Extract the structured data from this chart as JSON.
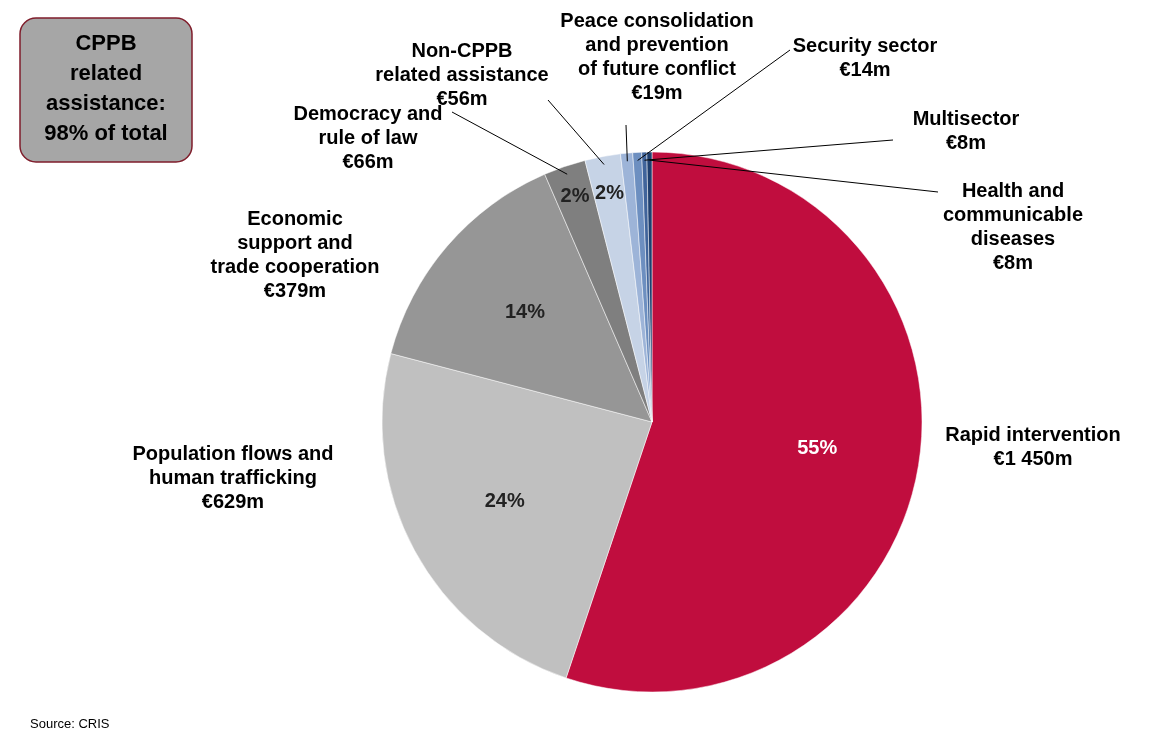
{
  "chart_data": {
    "type": "pie",
    "categories": [
      "Rapid intervention",
      "Population flows and human trafficking",
      "Economic support and trade cooperation",
      "Democracy and rule of law",
      "Non-CPPB related assistance",
      "Peace consolidation and prevention of future conflict",
      "Security sector",
      "Multisector",
      "Health and communicable diseases"
    ],
    "values": [
      1450,
      629,
      379,
      66,
      56,
      19,
      14,
      8,
      8
    ],
    "colors": [
      "#c00d3e",
      "#c0c0c0",
      "#969696",
      "#7f7f7f",
      "#c6d3e6",
      "#9db4d8",
      "#6d8fc0",
      "#40649b",
      "#1f3f6f"
    ],
    "value_labels": [
      "€1 450m",
      "€629m",
      "€379m",
      "€66m",
      "€56m",
      "€19m",
      "€14m",
      "€8m",
      "€8m"
    ],
    "annotations": [
      "55%",
      "24%",
      "14%",
      "2%",
      "2%",
      "CPPB related assistance: 98% of total",
      "Source: CRIS"
    ]
  }
}
